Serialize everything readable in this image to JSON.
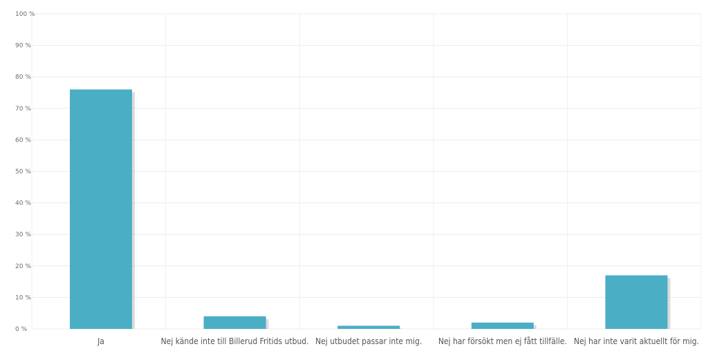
{
  "chart_data": {
    "type": "bar",
    "categories": [
      "Ja",
      "Nej kände inte till Billerud Fritids utbud.",
      "Nej utbudet passar inte mig.",
      "Nej har försökt men ej fått tillfälle.",
      "Nej har inte varit aktuellt för mig."
    ],
    "values": [
      76,
      4,
      1,
      2,
      17
    ],
    "ylim": [
      0,
      100
    ],
    "yticks": [
      "0 %",
      "10 %",
      "20 %",
      "30 %",
      "40 %",
      "50 %",
      "60 %",
      "70 %",
      "80 %",
      "90 %",
      "100 %"
    ],
    "ytick_values": [
      0,
      10,
      20,
      30,
      40,
      50,
      60,
      70,
      80,
      90,
      100
    ],
    "bar_color": "#4aaec5",
    "grid": true,
    "title": "",
    "xlabel": "",
    "ylabel": ""
  }
}
